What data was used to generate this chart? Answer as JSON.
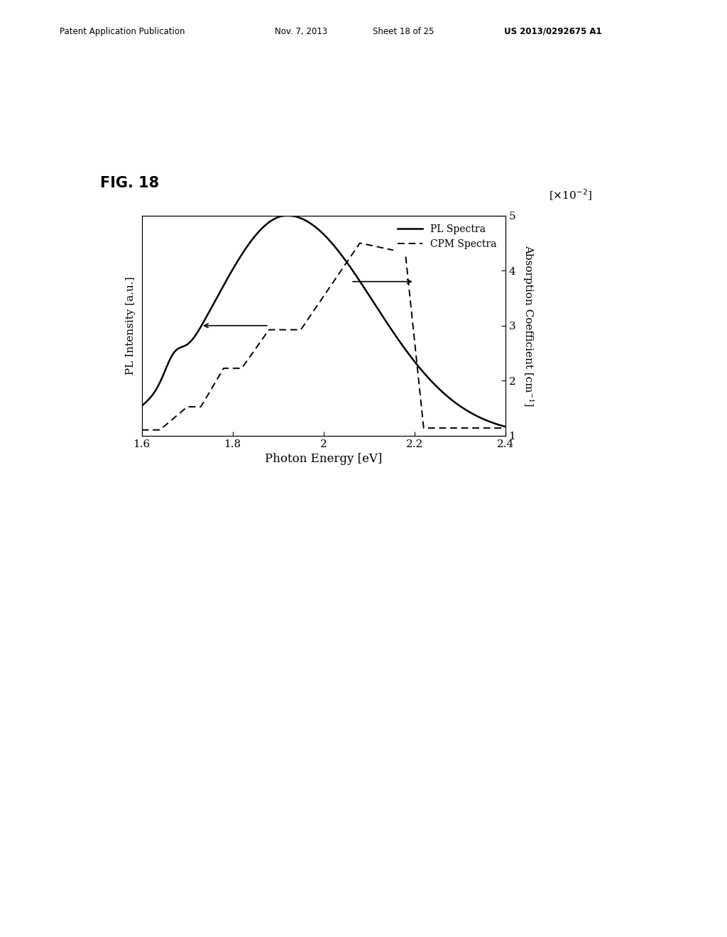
{
  "fig_label": "FIG. 18",
  "patent_header": "Patent Application Publication",
  "patent_date": "Nov. 7, 2013",
  "patent_sheet": "Sheet 18 of 25",
  "patent_number": "US 2013/0292675 A1",
  "xlabel": "Photon Energy [eV]",
  "ylabel_left": "PL Intensity [a.u.]",
  "ylabel_right": "Absorption Coefficient [cm⁻¹]",
  "right_axis_label": "[×10⁻²]",
  "xlim": [
    1.6,
    2.4
  ],
  "xticks": [
    1.6,
    1.8,
    2.0,
    2.2,
    2.4
  ],
  "ylim_left": [
    0,
    1.0
  ],
  "ylim_right": [
    1,
    5
  ],
  "yticks_right": [
    1,
    2,
    3,
    4,
    5
  ],
  "legend_solid": "PL Spectra",
  "legend_dashed": "CPM Spectra",
  "background_color": "#ffffff",
  "line_color": "#000000"
}
